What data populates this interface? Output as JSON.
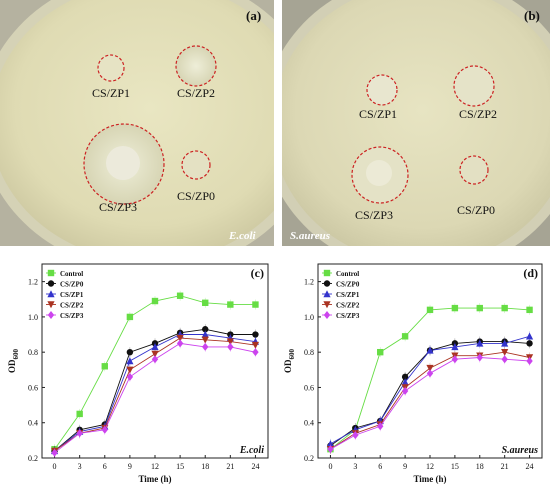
{
  "photos": [
    {
      "panel": "(a)",
      "organism": "E.coli",
      "samples": [
        "CS/ZP1",
        "CS/ZP2",
        "CS/ZP3",
        "CS/ZP0"
      ]
    },
    {
      "panel": "(b)",
      "organism": "S.aureus",
      "samples": [
        "CS/ZP1",
        "CS/ZP2",
        "CS/ZP3",
        "CS/ZP0"
      ]
    }
  ],
  "colors": {
    "Control": "#66dd44",
    "CS/ZP0": "#111111",
    "CS/ZP1": "#3333cc",
    "CS/ZP2": "#aa3322",
    "CS/ZP3": "#cc44ee",
    "zone_outline": "#cc2222"
  },
  "chart_data": [
    {
      "panel": "(c)",
      "type": "line",
      "annotation": "E.coli",
      "xlabel": "Time (h)",
      "ylabel": "OD600",
      "ylim": [
        0.2,
        1.3
      ],
      "yticks": [
        "0.2",
        "0.4",
        "0.6",
        "0.8",
        "1.0",
        "1.2"
      ],
      "x": [
        0,
        3,
        6,
        9,
        12,
        15,
        18,
        21,
        24
      ],
      "xlim": [
        -1.5,
        25.5
      ],
      "legend": "top-left",
      "series": [
        {
          "name": "Control",
          "marker": "square",
          "values": [
            0.25,
            0.45,
            0.72,
            1.0,
            1.09,
            1.12,
            1.08,
            1.07,
            1.07
          ]
        },
        {
          "name": "CS/ZP0",
          "marker": "circle",
          "values": [
            0.24,
            0.36,
            0.39,
            0.8,
            0.85,
            0.91,
            0.93,
            0.9,
            0.9
          ]
        },
        {
          "name": "CS/ZP1",
          "marker": "triangle-up",
          "values": [
            0.24,
            0.35,
            0.38,
            0.75,
            0.83,
            0.9,
            0.9,
            0.88,
            0.86
          ]
        },
        {
          "name": "CS/ZP2",
          "marker": "triangle-down",
          "values": [
            0.24,
            0.34,
            0.37,
            0.7,
            0.79,
            0.88,
            0.87,
            0.86,
            0.84
          ]
        },
        {
          "name": "CS/ZP3",
          "marker": "diamond",
          "values": [
            0.23,
            0.34,
            0.36,
            0.66,
            0.76,
            0.85,
            0.83,
            0.83,
            0.8
          ]
        }
      ]
    },
    {
      "panel": "(d)",
      "type": "line",
      "annotation": "S.aureus",
      "xlabel": "Time (h)",
      "ylabel": "OD600",
      "ylim": [
        0.2,
        1.3
      ],
      "yticks": [
        "0.2",
        "0.4",
        "0.6",
        "0.8",
        "1.0",
        "1.2"
      ],
      "x": [
        0,
        3,
        6,
        9,
        12,
        15,
        18,
        21,
        24
      ],
      "xlim": [
        -1.5,
        25.5
      ],
      "legend": "top-left",
      "series": [
        {
          "name": "Control",
          "marker": "square",
          "values": [
            0.25,
            0.36,
            0.8,
            0.89,
            1.04,
            1.05,
            1.05,
            1.05,
            1.04
          ]
        },
        {
          "name": "CS/ZP0",
          "marker": "circle",
          "values": [
            0.27,
            0.37,
            0.41,
            0.66,
            0.81,
            0.85,
            0.86,
            0.86,
            0.85
          ]
        },
        {
          "name": "CS/ZP1",
          "marker": "triangle-up",
          "values": [
            0.28,
            0.36,
            0.41,
            0.63,
            0.81,
            0.83,
            0.85,
            0.85,
            0.89
          ]
        },
        {
          "name": "CS/ZP2",
          "marker": "triangle-down",
          "values": [
            0.25,
            0.34,
            0.39,
            0.6,
            0.71,
            0.78,
            0.78,
            0.8,
            0.77
          ]
        },
        {
          "name": "CS/ZP3",
          "marker": "diamond",
          "values": [
            0.25,
            0.33,
            0.38,
            0.58,
            0.68,
            0.76,
            0.77,
            0.76,
            0.75
          ]
        }
      ]
    }
  ]
}
